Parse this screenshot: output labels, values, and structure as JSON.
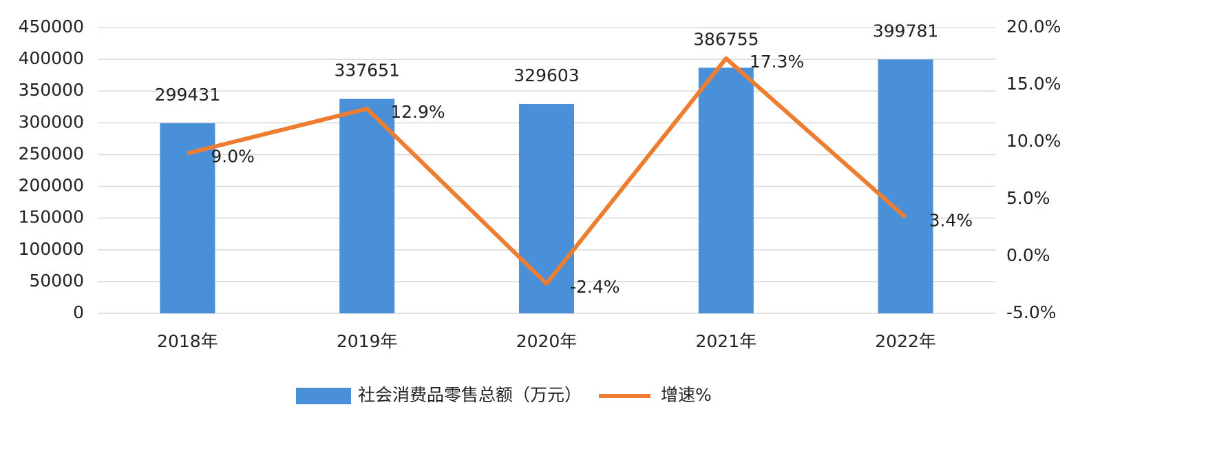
{
  "chart_data": {
    "type": "bar",
    "categories": [
      "2018年",
      "2019年",
      "2020年",
      "2021年",
      "2022年"
    ],
    "series": [
      {
        "name": "社会消费品零售总额（万元）",
        "type": "bar",
        "color": "#4a90d9",
        "values": [
          299431,
          337651,
          329603,
          386755,
          399781
        ]
      },
      {
        "name": "增速%",
        "type": "line",
        "axis": "y2",
        "color": "#ed7d31",
        "values": [
          9.0,
          12.9,
          -2.4,
          17.3,
          3.4
        ],
        "value_labels": [
          "9.0%",
          "12.9%",
          "-2.4%",
          "17.3%",
          "3.4%"
        ]
      }
    ],
    "ylim": [
      0,
      450000
    ],
    "yticks": [
      0,
      50000,
      100000,
      150000,
      200000,
      250000,
      300000,
      350000,
      400000,
      450000
    ],
    "y2lim": [
      -5,
      20
    ],
    "y2ticks": [
      {
        "value": -5,
        "label": "-5.0%"
      },
      {
        "value": 0,
        "label": "0.0%"
      },
      {
        "value": 5,
        "label": "5.0%"
      },
      {
        "value": 10,
        "label": "10.0%"
      },
      {
        "value": 15,
        "label": "15.0%"
      },
      {
        "value": 20,
        "label": "20.0%"
      }
    ],
    "grid": true,
    "legend": "bottom"
  }
}
